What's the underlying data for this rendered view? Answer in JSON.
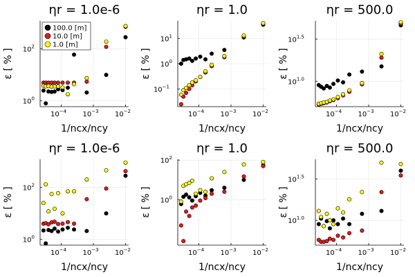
{
  "series_names": [
    "100.0 [m]",
    "10.0 [m]",
    "1.0 [m]"
  ],
  "series_colors": [
    "#000000",
    "#e41a1c",
    "#ffff00"
  ],
  "chart_data": [
    {
      "type": "scatter",
      "title": "ηr = 1.0e-6",
      "xlabel": "1/ncx/ncy",
      "ylabel": "ε [ % ]",
      "xscale": "log",
      "yscale": "log",
      "xlim": [
        2.2e-05,
        0.0125
      ],
      "ylim": [
        0.6,
        1200
      ],
      "yticks": [
        {
          "v": 1,
          "t": "10",
          "e": "0"
        },
        {
          "v": 100,
          "t": "10",
          "e": "2"
        }
      ],
      "xticks": [
        {
          "v": 0.0001,
          "t": "10",
          "e": "−4"
        },
        {
          "v": 0.001,
          "t": "10",
          "e": "−3"
        },
        {
          "v": 0.01,
          "t": "10",
          "e": "−2"
        }
      ],
      "grid": true,
      "legend": "top-left",
      "series": [
        {
          "name": "100.0 [m]",
          "x": [
            2.8e-05,
            3.3e-05,
            4e-05,
            5e-05,
            6.2e-05,
            8e-05,
            0.00011,
            0.00016,
            0.00025,
            0.00062,
            0.0025,
            0.01
          ],
          "y": [
            2.5,
            0.8,
            2.3,
            2.2,
            2.3,
            2.8,
            2.6,
            3.2,
            60,
            2.1,
            10,
            280
          ]
        },
        {
          "name": "10.0 [m]",
          "x": [
            2.8e-05,
            3.3e-05,
            4e-05,
            5e-05,
            6.2e-05,
            8e-05,
            0.00011,
            0.00016,
            0.00025,
            0.00062,
            0.0025,
            0.01
          ],
          "y": [
            5,
            5,
            5,
            5,
            5,
            5,
            5,
            5,
            5,
            5.5,
            120,
            700
          ]
        },
        {
          "name": "1.0 [m]",
          "x": [
            2.8e-05,
            3.3e-05,
            4e-05,
            5e-05,
            6.2e-05,
            8e-05,
            0.00011,
            0.00016,
            0.00025,
            0.00062,
            0.0025,
            0.01
          ],
          "y": [
            3.8,
            3.6,
            3.7,
            3.5,
            3.6,
            3.6,
            3.3,
            1.8,
            4.4,
            7.5,
            190,
            750
          ]
        }
      ]
    },
    {
      "type": "scatter",
      "title": "ηr = 1.0",
      "xlabel": "1/ncx/ncy",
      "ylabel": "ε [ % ]",
      "xscale": "log",
      "yscale": "log",
      "xlim": [
        2.2e-05,
        0.0125
      ],
      "ylim": [
        0.02,
        50
      ],
      "yticks": [
        {
          "v": 0.1,
          "t": "10",
          "e": "−1"
        },
        {
          "v": 1,
          "t": "10",
          "e": "0"
        },
        {
          "v": 10,
          "t": "10",
          "e": "1"
        }
      ],
      "xticks": [
        {
          "v": 0.0001,
          "t": "10",
          "e": "−4"
        },
        {
          "v": 0.001,
          "t": "10",
          "e": "−3"
        },
        {
          "v": 0.01,
          "t": "10",
          "e": "−2"
        }
      ],
      "grid": true,
      "series": [
        {
          "name": "100.0 [m]",
          "x": [
            2.8e-05,
            3.3e-05,
            4e-05,
            5e-05,
            6.2e-05,
            8e-05,
            0.00011,
            0.00016,
            0.00025,
            0.00062,
            0.0025,
            0.01
          ],
          "y": [
            1.0,
            1.4,
            1.5,
            1.6,
            1.3,
            1.6,
            1.9,
            1.5,
            2.5,
            3.5,
            11,
            35
          ]
        },
        {
          "name": "10.0 [m]",
          "x": [
            2.8e-05,
            3.3e-05,
            4e-05,
            5e-05,
            6.2e-05,
            8e-05,
            0.00011,
            0.00016,
            0.00025,
            0.00062,
            0.0025,
            0.01
          ],
          "y": [
            0.025,
            0.05,
            0.07,
            0.1,
            0.14,
            0.2,
            0.3,
            0.45,
            0.8,
            1.8,
            12,
            38
          ]
        },
        {
          "name": "1.0 [m]",
          "x": [
            2.8e-05,
            3.3e-05,
            4e-05,
            5e-05,
            6.2e-05,
            8e-05,
            0.00011,
            0.00016,
            0.00025,
            0.00062,
            0.0025,
            0.01
          ],
          "y": [
            0.06,
            0.09,
            0.11,
            0.14,
            0.18,
            0.22,
            0.3,
            0.5,
            0.9,
            2.0,
            13,
            40
          ]
        }
      ]
    },
    {
      "type": "scatter",
      "title": "ηr = 500.0",
      "xlabel": "1/ncx/ncy",
      "ylabel": "ε [ % ]",
      "xscale": "log",
      "yscale": "log",
      "xlim": [
        2.2e-05,
        0.0125
      ],
      "ylim": [
        5.0,
        52
      ],
      "yticks": [
        {
          "v": 10,
          "t": "10",
          "e": "1.0"
        },
        {
          "v": 31.62,
          "t": "10",
          "e": "1.5"
        }
      ],
      "xticks": [
        {
          "v": 0.0001,
          "t": "10",
          "e": "−4"
        },
        {
          "v": 0.001,
          "t": "10",
          "e": "−3"
        },
        {
          "v": 0.01,
          "t": "10",
          "e": "−2"
        }
      ],
      "grid": true,
      "series": [
        {
          "name": "100.0 [m]",
          "x": [
            2.8e-05,
            3.3e-05,
            4e-05,
            5e-05,
            6.2e-05,
            8e-05,
            0.00011,
            0.00016,
            0.00025,
            0.00062,
            0.0025,
            0.01
          ],
          "y": [
            9.0,
            8.6,
            8.2,
            8.8,
            8.4,
            9.3,
            10.2,
            9.7,
            12.0,
            13.0,
            15.0,
            46
          ]
        },
        {
          "name": "10.0 [m]",
          "x": [
            2.8e-05,
            3.3e-05,
            4e-05,
            5e-05,
            6.2e-05,
            8e-05,
            0.00011,
            0.00016,
            0.00025,
            0.00062,
            0.0025,
            0.01
          ],
          "y": [
            5.3,
            5.4,
            5.5,
            5.6,
            5.8,
            6.0,
            6.3,
            6.8,
            7.5,
            9.2,
            19,
            48
          ]
        },
        {
          "name": "1.0 [m]",
          "x": [
            2.8e-05,
            3.3e-05,
            4e-05,
            5e-05,
            6.2e-05,
            8e-05,
            0.00011,
            0.00016,
            0.00025,
            0.00062,
            0.0025,
            0.01
          ],
          "y": [
            5.4,
            5.5,
            5.6,
            5.7,
            5.9,
            6.1,
            6.5,
            7.0,
            7.8,
            9.5,
            21,
            50
          ]
        }
      ]
    },
    {
      "type": "scatter",
      "title": "ηr = 1.0e-6",
      "xlabel": "1/ncx/ncy",
      "ylabel": "ε [ % ]",
      "xscale": "log",
      "yscale": "log",
      "xlim": [
        2.2e-05,
        0.0125
      ],
      "ylim": [
        0.6,
        1200
      ],
      "yticks": [
        {
          "v": 1,
          "t": "10",
          "e": "0"
        },
        {
          "v": 100,
          "t": "10",
          "e": "2"
        }
      ],
      "xticks": [
        {
          "v": 0.0001,
          "t": "10",
          "e": "−4"
        },
        {
          "v": 0.001,
          "t": "10",
          "e": "−3"
        },
        {
          "v": 0.01,
          "t": "10",
          "e": "−2"
        }
      ],
      "grid": true,
      "series": [
        {
          "name": "100.0 [m]",
          "x": [
            2.8e-05,
            3.3e-05,
            4e-05,
            5e-05,
            6.2e-05,
            8e-05,
            0.00011,
            0.00016,
            0.00025,
            0.00062,
            0.0025,
            0.01
          ],
          "y": [
            2.2,
            0.7,
            2.3,
            2.1,
            2.6,
            2.0,
            2.4,
            2.8,
            2.4,
            2.1,
            10,
            280
          ]
        },
        {
          "name": "10.0 [m]",
          "x": [
            2.8e-05,
            3.3e-05,
            4e-05,
            5e-05,
            6.2e-05,
            8e-05,
            0.00011,
            0.00016,
            0.00025,
            0.00062,
            0.0025,
            0.01
          ],
          "y": [
            4.0,
            4.2,
            3.8,
            4.5,
            4.8,
            3.9,
            4.0,
            4.6,
            4.0,
            35,
            90,
            420
          ]
        },
        {
          "name": "1.0 [m]",
          "x": [
            2.8e-05,
            3.3e-05,
            4e-05,
            5e-05,
            6.2e-05,
            8e-05,
            0.00011,
            0.00016,
            0.00025,
            0.00062,
            0.0025,
            0.01
          ],
          "y": [
            25,
            130,
            12,
            55,
            15,
            60,
            10,
            70,
            70,
            200,
            450,
            900
          ]
        }
      ]
    },
    {
      "type": "scatter",
      "title": "ηr = 1.0",
      "xlabel": "1/ncx/ncy",
      "ylabel": "ε [ % ]",
      "xscale": "log",
      "yscale": "log",
      "xlim": [
        2.2e-05,
        0.0125
      ],
      "ylim": [
        0.005,
        110
      ],
      "yticks": [
        {
          "v": 1,
          "t": "10",
          "e": "0"
        },
        {
          "v": 100,
          "t": "10",
          "e": "2"
        }
      ],
      "xticks": [
        {
          "v": 0.0001,
          "t": "10",
          "e": "−4"
        },
        {
          "v": 0.001,
          "t": "10",
          "e": "−3"
        },
        {
          "v": 0.01,
          "t": "10",
          "e": "−2"
        }
      ],
      "grid": true,
      "series": [
        {
          "name": "100.0 [m]",
          "x": [
            2.8e-05,
            3.3e-05,
            4e-05,
            5e-05,
            6.2e-05,
            8e-05,
            0.00011,
            0.00016,
            0.00025,
            0.00062,
            0.0025,
            0.01
          ],
          "y": [
            0.6,
            1.4,
            1.8,
            1.3,
            0.9,
            1.5,
            2.2,
            1.6,
            3.0,
            4.0,
            10,
            55
          ]
        },
        {
          "name": "10.0 [m]",
          "x": [
            2.8e-05,
            3.3e-05,
            4e-05,
            5e-05,
            6.2e-05,
            8e-05,
            0.00011,
            0.00016,
            0.00025,
            0.00062,
            0.0025,
            0.01
          ],
          "y": [
            0.05,
            0.008,
            0.25,
            0.15,
            0.4,
            0.5,
            0.9,
            1.2,
            2.0,
            2.5,
            15,
            50
          ]
        },
        {
          "name": "1.0 [m]",
          "x": [
            2.8e-05,
            3.3e-05,
            4e-05,
            5e-05,
            6.2e-05,
            8e-05,
            0.00011,
            0.00016,
            0.00025,
            0.00062,
            0.0025,
            0.01
          ],
          "y": [
            0.8,
            5,
            6,
            7,
            9,
            2,
            3,
            2.5,
            12,
            25,
            60,
            80
          ]
        }
      ]
    },
    {
      "type": "scatter",
      "title": "ηr = 500.0",
      "xlabel": "1/ncx/ncy",
      "ylabel": "ε [ % ]",
      "xscale": "log",
      "yscale": "log",
      "xlim": [
        2.2e-05,
        0.0125
      ],
      "ylim": [
        5.0,
        55
      ],
      "yticks": [
        {
          "v": 10,
          "t": "10",
          "e": "1.0"
        },
        {
          "v": 31.62,
          "t": "10",
          "e": "1.5"
        }
      ],
      "xticks": [
        {
          "v": 0.0001,
          "t": "10",
          "e": "−4"
        },
        {
          "v": 0.001,
          "t": "10",
          "e": "−3"
        },
        {
          "v": 0.01,
          "t": "10",
          "e": "−2"
        }
      ],
      "grid": true,
      "series": [
        {
          "name": "100.0 [m]",
          "x": [
            2.8e-05,
            3.3e-05,
            4e-05,
            5e-05,
            6.2e-05,
            8e-05,
            0.00011,
            0.00016,
            0.00025,
            0.00062,
            0.0025,
            0.01
          ],
          "y": [
            9.0,
            10.5,
            8.5,
            9.8,
            8.0,
            10.0,
            9.0,
            10.5,
            9.0,
            12.0,
            13,
            40
          ]
        },
        {
          "name": "10.0 [m]",
          "x": [
            2.8e-05,
            3.3e-05,
            4e-05,
            5e-05,
            6.2e-05,
            8e-05,
            0.00011,
            0.00016,
            0.00025,
            0.00062,
            0.0025,
            0.01
          ],
          "y": [
            5.8,
            5.5,
            5.5,
            5.6,
            6.0,
            5.8,
            6.5,
            6.2,
            7.0,
            7.5,
            22,
            35
          ]
        },
        {
          "name": "1.0 [m]",
          "x": [
            2.8e-05,
            3.3e-05,
            4e-05,
            5e-05,
            6.2e-05,
            8e-05,
            0.00011,
            0.00016,
            0.00025,
            0.00062,
            0.0025,
            0.01
          ],
          "y": [
            13.0,
            11.0,
            8.5,
            12.0,
            10.0,
            9.0,
            14.0,
            12.5,
            18.0,
            22.0,
            50,
            48
          ]
        }
      ]
    }
  ]
}
